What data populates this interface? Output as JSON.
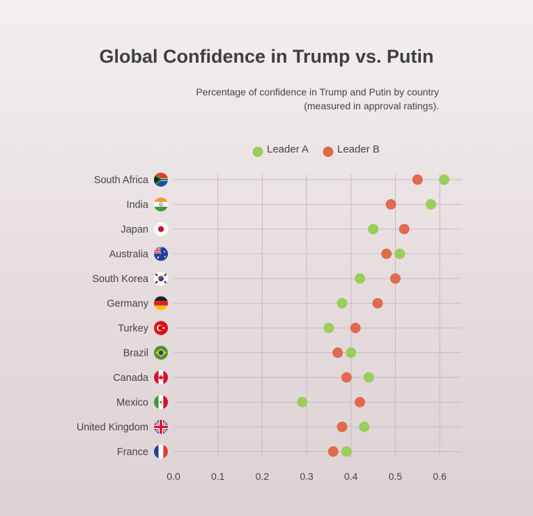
{
  "chart_data": {
    "type": "scatter",
    "title": "Global Confidence in Trump vs. Putin",
    "subtitle_lines": [
      "Percentage of confidence in Trump and Putin by country",
      "(measured in approval ratings)."
    ],
    "xlabel": "",
    "ylabel": "",
    "xlim": [
      0,
      0.65
    ],
    "x_ticks": [
      "0.0",
      "0.1",
      "0.2",
      "0.3",
      "0.4",
      "0.5",
      "0.6"
    ],
    "grid": true,
    "legend_placement": "top-center",
    "categories": [
      "South Africa",
      "India",
      "Japan",
      "Australia",
      "South Korea",
      "Germany",
      "Turkey",
      "Brazil",
      "Canada",
      "Mexico",
      "United Kingdom",
      "France"
    ],
    "flag_icons": [
      "south-africa-flag-icon",
      "india-flag-icon",
      "japan-flag-icon",
      "australia-flag-icon",
      "south-korea-flag-icon",
      "germany-flag-icon",
      "turkey-flag-icon",
      "brazil-flag-icon",
      "canada-flag-icon",
      "mexico-flag-icon",
      "united-kingdom-flag-icon",
      "france-flag-icon"
    ],
    "series": [
      {
        "name": "Leader A",
        "color": "#9acd5a",
        "values": [
          0.61,
          0.58,
          0.45,
          0.51,
          0.42,
          0.38,
          0.35,
          0.4,
          0.44,
          0.29,
          0.43,
          0.39
        ]
      },
      {
        "name": "Leader B",
        "color": "#e06a4e",
        "values": [
          0.55,
          0.49,
          0.52,
          0.48,
          0.5,
          0.46,
          0.41,
          0.37,
          0.39,
          0.42,
          0.38,
          0.36
        ]
      }
    ]
  }
}
